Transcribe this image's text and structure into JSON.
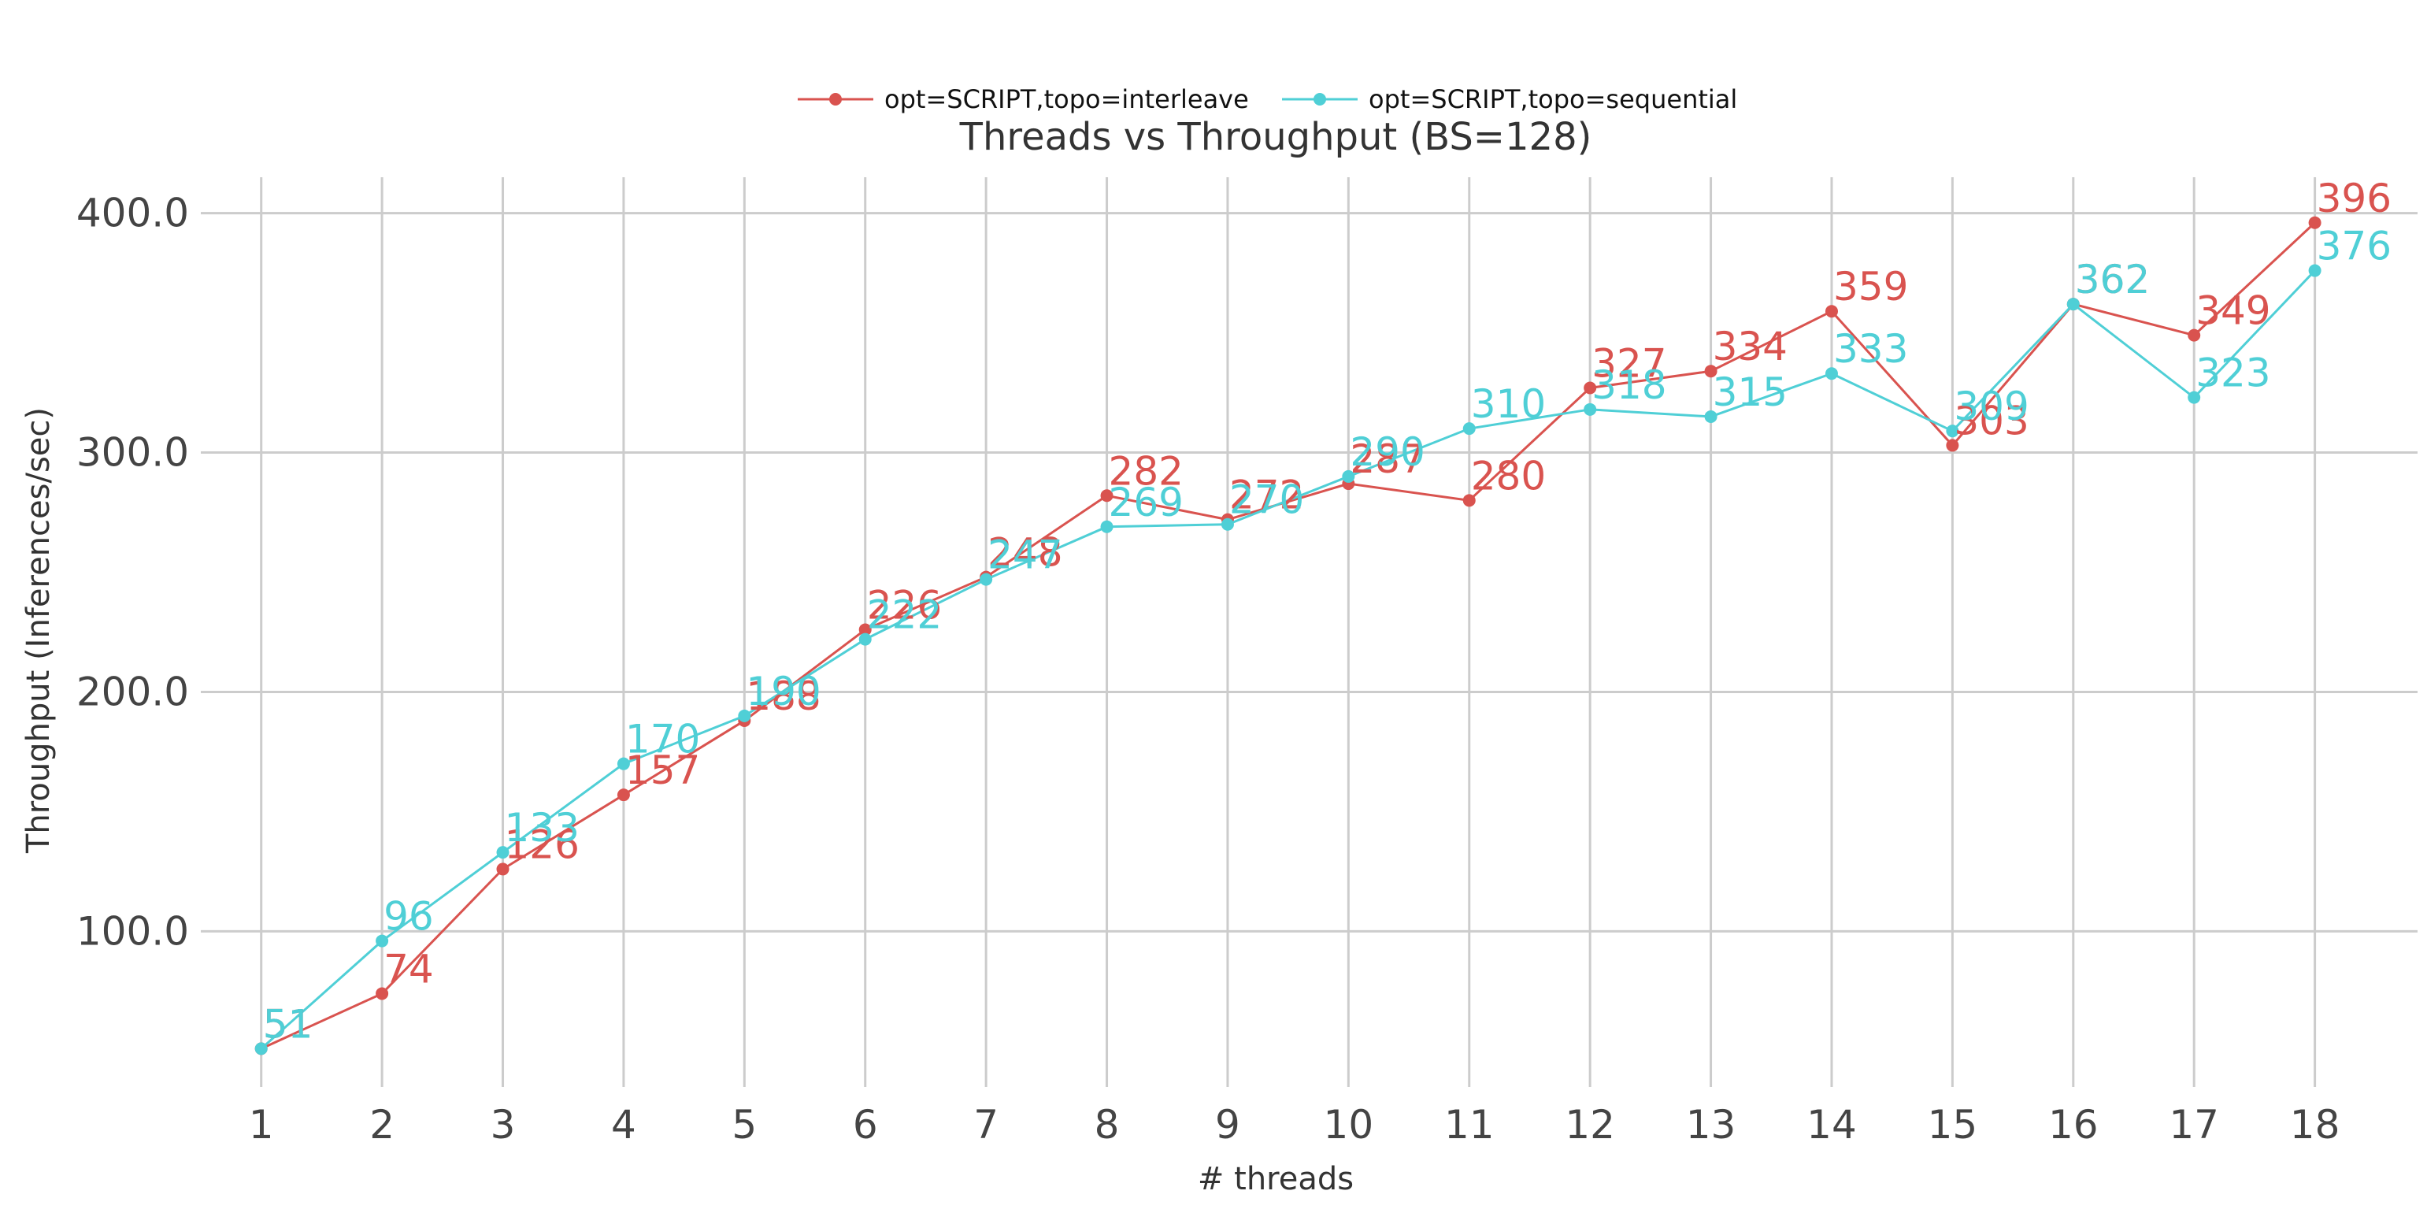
{
  "chart_data": {
    "type": "line",
    "title": "Threads vs Throughput (BS=128)",
    "xlabel": "# threads",
    "ylabel": "Throughput (Inferences/sec)",
    "x": [
      1,
      2,
      3,
      4,
      5,
      6,
      7,
      8,
      9,
      10,
      11,
      12,
      13,
      14,
      15,
      16,
      17,
      18
    ],
    "y_ticks": [
      100,
      200,
      300,
      400
    ],
    "y_tick_labels": [
      "100.0",
      "200.0",
      "300.0",
      "400.0"
    ],
    "ylim": [
      35,
      415
    ],
    "xlim": [
      0.5,
      18.85
    ],
    "grid": true,
    "legend_position": "top-center",
    "series": [
      {
        "name": "opt=SCRIPT,topo=interleave",
        "color": "#d9534f",
        "values": [
          51,
          74,
          126,
          157,
          188,
          226,
          248,
          282,
          272,
          287,
          280,
          327,
          334,
          359,
          303,
          362,
          349,
          396
        ],
        "labels": [
          "51",
          "74",
          "126",
          "157",
          "188",
          "226",
          "248",
          "282",
          "272",
          "287",
          "280",
          "327",
          "334",
          "359",
          "303",
          "362",
          "349",
          "396"
        ]
      },
      {
        "name": "opt=SCRIPT,topo=sequential",
        "color": "#4fcfd6",
        "values": [
          51,
          96,
          133,
          170,
          190,
          222,
          247,
          269,
          270,
          290,
          310,
          318,
          315,
          333,
          309,
          362,
          323,
          376
        ],
        "labels": [
          "51",
          "96",
          "133",
          "170",
          "190",
          "222",
          "247",
          "269",
          "270",
          "290",
          "310",
          "318",
          "315",
          "333",
          "309",
          "362",
          "323",
          "376"
        ]
      }
    ]
  }
}
